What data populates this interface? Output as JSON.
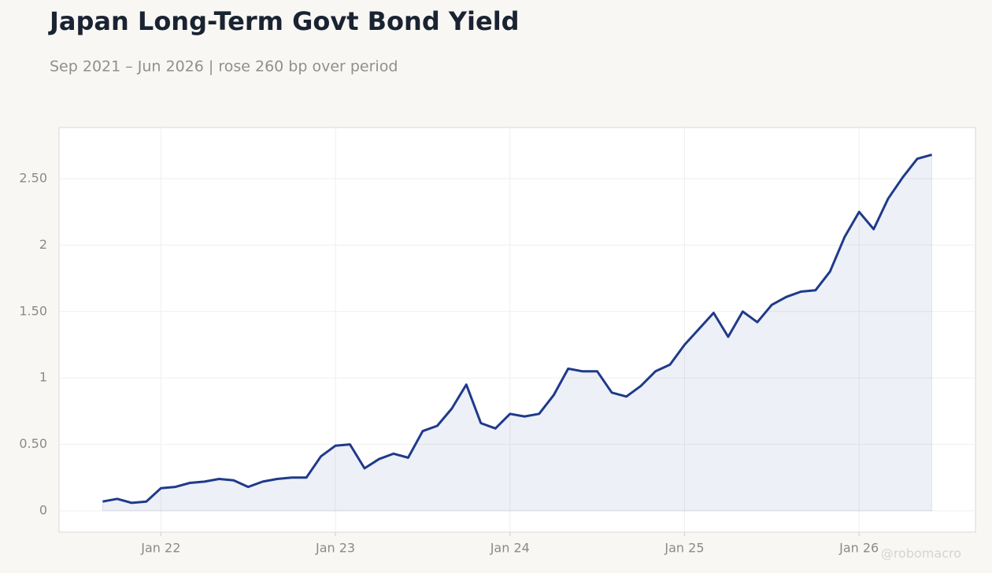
{
  "chart_data": {
    "type": "area",
    "title": "Japan Long-Term Govt Bond Yield",
    "subtitle": "Sep 2021 – Jun 2026 | rose 260 bp over period",
    "watermark": "@robomacro",
    "color": "#1f3a8a",
    "x": [
      "2021-09",
      "2021-10",
      "2021-11",
      "2021-12",
      "2022-01",
      "2022-02",
      "2022-03",
      "2022-04",
      "2022-05",
      "2022-06",
      "2022-07",
      "2022-08",
      "2022-09",
      "2022-10",
      "2022-11",
      "2022-12",
      "2023-01",
      "2023-02",
      "2023-03",
      "2023-04",
      "2023-05",
      "2023-06",
      "2023-07",
      "2023-08",
      "2023-09",
      "2023-10",
      "2023-11",
      "2023-12",
      "2024-01",
      "2024-02",
      "2024-03",
      "2024-04",
      "2024-05",
      "2024-06",
      "2024-07",
      "2024-08",
      "2024-09",
      "2024-10",
      "2024-11",
      "2024-12",
      "2025-01",
      "2025-02",
      "2025-03",
      "2025-04",
      "2025-05",
      "2025-06",
      "2025-07",
      "2025-08",
      "2025-09",
      "2025-10",
      "2025-11",
      "2025-12",
      "2026-01",
      "2026-02",
      "2026-03",
      "2026-04",
      "2026-05",
      "2026-06"
    ],
    "values": [
      0.07,
      0.09,
      0.06,
      0.07,
      0.17,
      0.18,
      0.21,
      0.22,
      0.24,
      0.23,
      0.18,
      0.22,
      0.24,
      0.25,
      0.25,
      0.41,
      0.49,
      0.5,
      0.32,
      0.39,
      0.43,
      0.4,
      0.6,
      0.64,
      0.77,
      0.95,
      0.66,
      0.62,
      0.73,
      0.71,
      0.73,
      0.87,
      1.07,
      1.05,
      1.05,
      0.89,
      0.86,
      0.94,
      1.05,
      1.1,
      1.25,
      1.37,
      1.49,
      1.31,
      1.5,
      1.42,
      1.55,
      1.61,
      1.65,
      1.66,
      1.8,
      2.06,
      2.25,
      2.12,
      2.35,
      2.51,
      2.65,
      2.68
    ],
    "xlim": [
      "2021-06",
      "2026-09"
    ],
    "xticks": [
      {
        "value": "2022-01",
        "label": "Jan 22"
      },
      {
        "value": "2023-01",
        "label": "Jan 23"
      },
      {
        "value": "2024-01",
        "label": "Jan 24"
      },
      {
        "value": "2025-01",
        "label": "Jan 25"
      },
      {
        "value": "2026-01",
        "label": "Jan 26"
      }
    ],
    "ylim": [
      -0.16,
      2.885
    ],
    "yticks": [
      0,
      {
        "value": 0.5,
        "label": "0.50"
      },
      1,
      {
        "value": 1.5,
        "label": "1.50"
      },
      2,
      {
        "value": 2.5,
        "label": "2.50"
      }
    ],
    "grid": true
  }
}
